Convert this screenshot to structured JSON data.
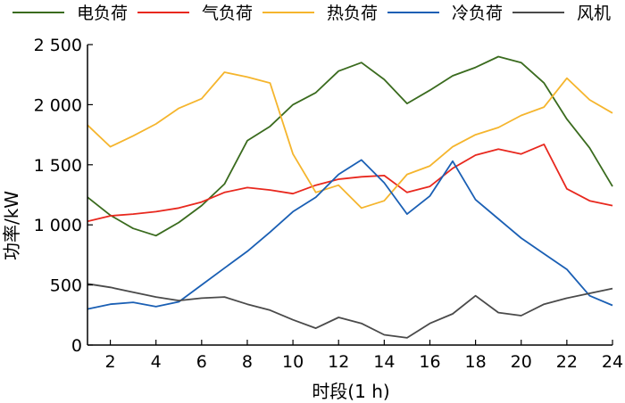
{
  "chart_data": {
    "type": "line",
    "xlabel": "时段(1 h)",
    "ylabel": "功率/kW",
    "x": [
      1,
      2,
      3,
      4,
      5,
      6,
      7,
      8,
      9,
      10,
      11,
      12,
      13,
      14,
      15,
      16,
      17,
      18,
      19,
      20,
      21,
      22,
      23,
      24
    ],
    "xlim": [
      1,
      24
    ],
    "ylim": [
      0,
      2500
    ],
    "xticks": [
      2,
      4,
      6,
      8,
      10,
      12,
      14,
      16,
      18,
      20,
      22,
      24
    ],
    "xtick_labels": [
      "2",
      "4",
      "6",
      "8",
      "10",
      "12",
      "14",
      "16",
      "18",
      "20",
      "22",
      "24"
    ],
    "yticks": [
      0,
      500,
      1000,
      1500,
      2000,
      2500
    ],
    "ytick_labels": [
      "0",
      "500",
      "1 000",
      "1 500",
      "2 000",
      "2 500"
    ],
    "grid": false,
    "legend_position": "top",
    "series": [
      {
        "name": "电负荷",
        "color": "#3a6b1e",
        "values": [
          1230,
          1080,
          970,
          910,
          1020,
          1160,
          1340,
          1700,
          1820,
          2000,
          2100,
          2280,
          2350,
          2210,
          2010,
          2120,
          2240,
          2310,
          2400,
          2350,
          2180,
          1880,
          1640,
          1320
        ]
      },
      {
        "name": "气负荷",
        "color": "#e8281e",
        "values": [
          1030,
          1075,
          1090,
          1110,
          1140,
          1190,
          1270,
          1310,
          1290,
          1260,
          1330,
          1380,
          1400,
          1410,
          1270,
          1320,
          1470,
          1580,
          1630,
          1590,
          1670,
          1300,
          1200,
          1160
        ]
      },
      {
        "name": "热负荷",
        "color": "#f5b52d",
        "values": [
          1830,
          1650,
          1740,
          1840,
          1970,
          2050,
          2270,
          2230,
          2180,
          1590,
          1270,
          1330,
          1140,
          1200,
          1420,
          1490,
          1650,
          1750,
          1810,
          1910,
          1980,
          2220,
          2040,
          1930
        ]
      },
      {
        "name": "冷负荷",
        "color": "#1a5fb4",
        "values": [
          300,
          340,
          355,
          320,
          360,
          500,
          640,
          780,
          940,
          1110,
          1230,
          1420,
          1540,
          1350,
          1090,
          1240,
          1530,
          1210,
          1050,
          890,
          760,
          630,
          410,
          330
        ]
      },
      {
        "name": "风机",
        "color": "#4a4a4a",
        "values": [
          510,
          480,
          440,
          400,
          370,
          390,
          400,
          340,
          290,
          210,
          140,
          230,
          180,
          85,
          60,
          180,
          260,
          410,
          270,
          245,
          340,
          390,
          430,
          470
        ]
      }
    ]
  }
}
